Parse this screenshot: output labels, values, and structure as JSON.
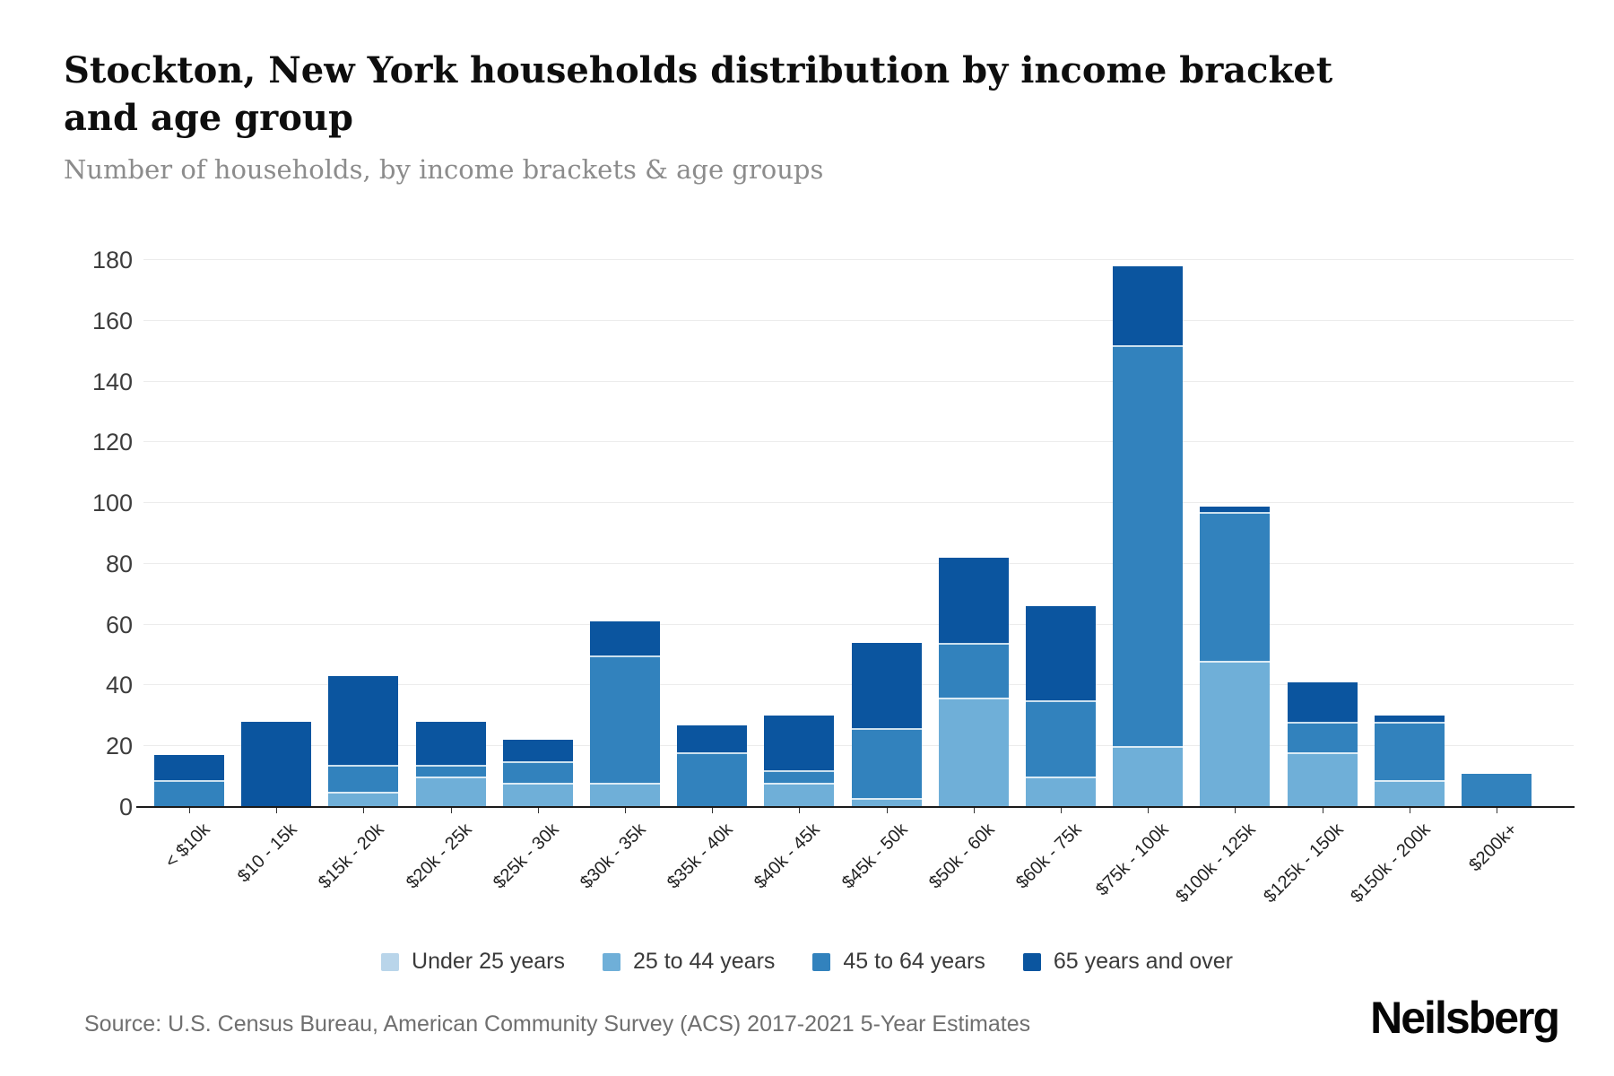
{
  "header": {
    "title": "Stockton, New York households distribution by income bracket and age group",
    "subtitle": "Number of households, by income brackets & age groups"
  },
  "footer": {
    "source": "Source: U.S. Census Bureau, American Community Survey (ACS) 2017-2021 5-Year Estimates",
    "brand": "Neilsberg"
  },
  "colors": {
    "axis": "#1a1a1a",
    "gridline": "#ececec",
    "under_25": "#b9d5ea",
    "age_25_44": "#6fafd8",
    "age_45_64": "#3282bd",
    "age_65_over": "#0b559f"
  },
  "chart_data": {
    "type": "bar",
    "stacked": true,
    "title": "Stockton, New York households distribution by income bracket and age group",
    "subtitle": "Number of households, by income brackets & age groups",
    "xlabel": "",
    "ylabel": "Number of households",
    "ylim": [
      0,
      180
    ],
    "yticks": [
      0,
      20,
      40,
      60,
      80,
      100,
      120,
      140,
      160,
      180
    ],
    "grid": true,
    "legend_position": "bottom",
    "categories": [
      "< $10k",
      "$10 - 15k",
      "$15k - 20k",
      "$20k - 25k",
      "$25k - 30k",
      "$30k - 35k",
      "$35k - 40k",
      "$40k - 45k",
      "$45k - 50k",
      "$50k - 60k",
      "$60k - 75k",
      "$75k - 100k",
      "$100k - 125k",
      "$125k - 150k",
      "$150k - 200k",
      "$200k+"
    ],
    "series": [
      {
        "name": "Under 25 years",
        "color": "#b9d5ea",
        "values": [
          0,
          0,
          0,
          0,
          0,
          0,
          0,
          0,
          0,
          0,
          0,
          0,
          0,
          0,
          0,
          0
        ]
      },
      {
        "name": "25 to 44 years",
        "color": "#6fafd8",
        "values": [
          0,
          0,
          5,
          10,
          8,
          8,
          0,
          8,
          3,
          36,
          10,
          20,
          48,
          18,
          9,
          0
        ]
      },
      {
        "name": "45 to 64 years",
        "color": "#3282bd",
        "values": [
          9,
          0,
          9,
          4,
          7,
          42,
          18,
          4,
          23,
          18,
          25,
          132,
          49,
          10,
          19,
          11
        ]
      },
      {
        "name": "65 years and over",
        "color": "#0b559f",
        "values": [
          8,
          28,
          29,
          14,
          7,
          11,
          9,
          18,
          28,
          28,
          31,
          26,
          2,
          13,
          2,
          0
        ]
      }
    ],
    "totals": [
      17,
      28,
      43,
      28,
      22,
      61,
      27,
      30,
      54,
      82,
      66,
      178,
      99,
      41,
      30,
      11
    ]
  }
}
